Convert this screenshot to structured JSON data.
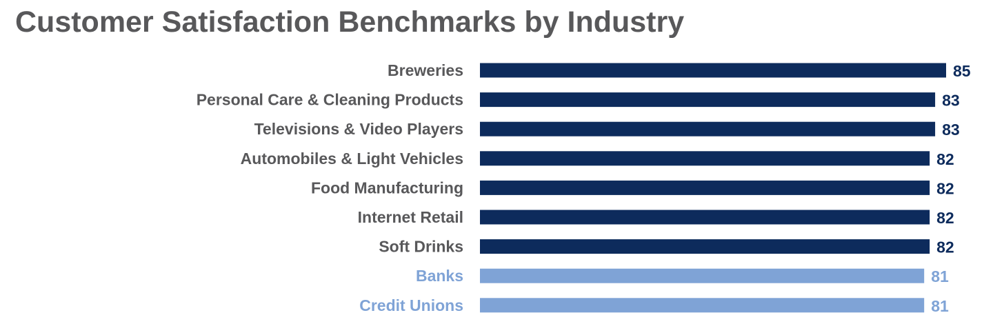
{
  "chart_data": {
    "type": "bar",
    "orientation": "horizontal",
    "title": "Customer Satisfaction Benchmarks by Industry",
    "xlabel": "",
    "ylabel": "",
    "xlim": [
      0,
      85
    ],
    "grid": false,
    "categories": [
      "Breweries",
      "Personal Care & Cleaning Products",
      "Televisions & Video Players",
      "Automobiles & Light Vehicles",
      "Food Manufacturing",
      "Internet Retail",
      "Soft Drinks",
      "Banks",
      "Credit Unions"
    ],
    "values": [
      85,
      83,
      83,
      82,
      82,
      82,
      82,
      81,
      81
    ],
    "data_labels": [
      "85",
      "83",
      "83",
      "82",
      "82",
      "82",
      "82",
      "81",
      "81"
    ],
    "highlighted": [
      false,
      false,
      false,
      false,
      false,
      false,
      false,
      true,
      true
    ],
    "colors": {
      "primary_bar": "#0d2b5c",
      "highlight_bar": "#7fa3d6",
      "primary_value": "#0d2b5c",
      "highlight_value": "#7fa3d6",
      "category_label": "#58585a",
      "highlight_label": "#7fa3d6",
      "title": "#58585a"
    }
  }
}
